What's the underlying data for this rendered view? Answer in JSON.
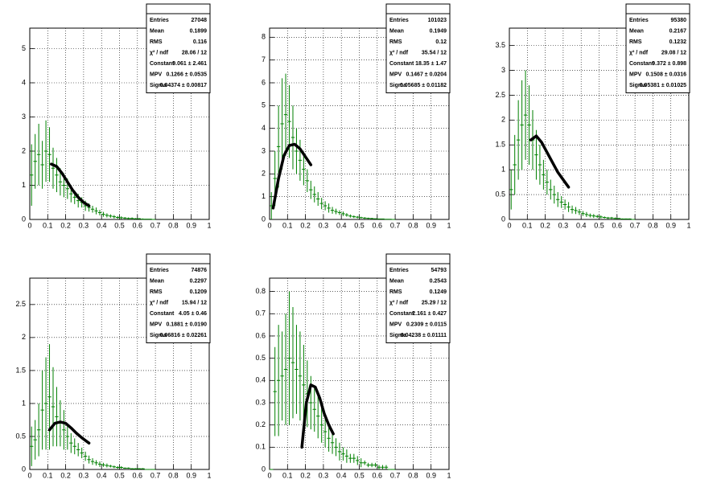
{
  "chart_data": [
    {
      "type": "histogram",
      "color": "#008000",
      "fit_color": "#000000",
      "grid": true,
      "xlim": [
        0,
        1
      ],
      "xticks": [
        0,
        0.1,
        0.2,
        0.3,
        0.4,
        0.5,
        0.6,
        0.7,
        0.8,
        0.9,
        1
      ],
      "ylim": [
        0,
        5.6
      ],
      "yticks": [
        0,
        1,
        2,
        3,
        4,
        5
      ],
      "x": [
        0.01,
        0.03,
        0.05,
        0.07,
        0.09,
        0.11,
        0.13,
        0.15,
        0.17,
        0.19,
        0.21,
        0.23,
        0.25,
        0.27,
        0.29,
        0.31,
        0.33,
        0.35,
        0.37,
        0.39,
        0.41,
        0.43,
        0.45,
        0.47,
        0.49,
        0.51,
        0.53,
        0.55,
        0.57,
        0.59,
        0.61,
        0.63,
        0.65,
        0.67,
        0.69
      ],
      "values": [
        1.3,
        1.7,
        1.9,
        1.6,
        2.0,
        1.9,
        1.5,
        1.3,
        1.1,
        1.0,
        0.9,
        0.75,
        0.65,
        0.55,
        0.5,
        0.4,
        0.35,
        0.3,
        0.25,
        0.2,
        0.15,
        0.12,
        0.1,
        0.08,
        0.06,
        0.05,
        0.04,
        0.03,
        0.03,
        0.02,
        0.02,
        0.01,
        0.01,
        0.01,
        0
      ],
      "errors": [
        0.9,
        0.8,
        0.9,
        0.7,
        0.9,
        0.8,
        0.6,
        0.5,
        0.4,
        0.35,
        0.3,
        0.25,
        0.2,
        0.2,
        0.15,
        0.15,
        0.12,
        0.1,
        0.1,
        0.08,
        0.07,
        0.06,
        0.05,
        0.05,
        0.04,
        0.04,
        0.03,
        0.03,
        0.03,
        0.02,
        0.02,
        0.02,
        0.01,
        0.01,
        0
      ],
      "fit_x": [
        0.12,
        0.15,
        0.18,
        0.21,
        0.24,
        0.27,
        0.3,
        0.33
      ],
      "fit_values": [
        1.62,
        1.55,
        1.35,
        1.1,
        0.85,
        0.65,
        0.5,
        0.4
      ],
      "stats": [
        [
          "Entries",
          "27048"
        ],
        [
          "Mean",
          "0.1899"
        ],
        [
          "RMS",
          "0.116"
        ],
        [
          "χ² / ndf",
          "28.06 / 12"
        ],
        [
          "Constant",
          "9.061 ± 2.461"
        ],
        [
          "MPV",
          "0.1266 ± 0.0535"
        ],
        [
          "Sigma",
          "0.04374 ± 0.00817"
        ]
      ]
    },
    {
      "type": "histogram",
      "color": "#008000",
      "fit_color": "#000000",
      "grid": true,
      "xlim": [
        0,
        1
      ],
      "xticks": [
        0,
        0.1,
        0.2,
        0.3,
        0.4,
        0.5,
        0.6,
        0.7,
        0.8,
        0.9,
        1
      ],
      "ylim": [
        0,
        8.4
      ],
      "yticks": [
        0,
        1,
        2,
        3,
        4,
        5,
        6,
        7,
        8
      ],
      "x": [
        0.01,
        0.03,
        0.05,
        0.07,
        0.09,
        0.11,
        0.13,
        0.15,
        0.17,
        0.19,
        0.21,
        0.23,
        0.25,
        0.27,
        0.29,
        0.31,
        0.33,
        0.35,
        0.37,
        0.39,
        0.41,
        0.43,
        0.45,
        0.47,
        0.49,
        0.51,
        0.53,
        0.55,
        0.57,
        0.59,
        0.61,
        0.63,
        0.65,
        0.67,
        0.69
      ],
      "values": [
        0.6,
        1.8,
        3.2,
        4.2,
        4.6,
        4.3,
        3.6,
        3.0,
        2.6,
        2.2,
        1.7,
        1.3,
        1.1,
        0.9,
        0.7,
        0.6,
        0.5,
        0.4,
        0.35,
        0.3,
        0.25,
        0.2,
        0.15,
        0.12,
        0.1,
        0.08,
        0.06,
        0.05,
        0.04,
        0.03,
        0.02,
        0.02,
        0.01,
        0.01,
        0
      ],
      "errors": [
        0.6,
        1.2,
        1.8,
        2.0,
        1.8,
        1.6,
        1.4,
        1.0,
        0.9,
        0.7,
        0.5,
        0.4,
        0.35,
        0.3,
        0.25,
        0.2,
        0.2,
        0.15,
        0.12,
        0.1,
        0.1,
        0.08,
        0.07,
        0.06,
        0.05,
        0.04,
        0.04,
        0.03,
        0.03,
        0.02,
        0.02,
        0.02,
        0.01,
        0.01,
        0
      ],
      "fit_x": [
        0.02,
        0.05,
        0.08,
        0.11,
        0.14,
        0.17,
        0.2,
        0.23
      ],
      "fit_values": [
        0.5,
        1.8,
        2.8,
        3.25,
        3.3,
        3.1,
        2.75,
        2.4
      ],
      "stats": [
        [
          "Entries",
          "101023"
        ],
        [
          "Mean",
          "0.1949"
        ],
        [
          "RMS",
          "0.12"
        ],
        [
          "χ² / ndf",
          "35.54 / 12"
        ],
        [
          "Constant",
          "18.35 ± 1.47"
        ],
        [
          "MPV",
          "0.1467 ± 0.0204"
        ],
        [
          "Sigma",
          "0.05685 ± 0.01182"
        ]
      ]
    },
    {
      "type": "histogram",
      "color": "#008000",
      "fit_color": "#000000",
      "grid": true,
      "xlim": [
        0,
        1
      ],
      "xticks": [
        0,
        0.1,
        0.2,
        0.3,
        0.4,
        0.5,
        0.6,
        0.7,
        0.8,
        0.9,
        1
      ],
      "ylim": [
        0,
        3.85
      ],
      "yticks": [
        0,
        0.5,
        1,
        1.5,
        2,
        2.5,
        3,
        3.5
      ],
      "x": [
        0.01,
        0.03,
        0.05,
        0.07,
        0.09,
        0.11,
        0.13,
        0.15,
        0.17,
        0.19,
        0.21,
        0.23,
        0.25,
        0.27,
        0.29,
        0.31,
        0.33,
        0.35,
        0.37,
        0.39,
        0.41,
        0.43,
        0.45,
        0.47,
        0.49,
        0.51,
        0.53,
        0.55,
        0.57,
        0.59,
        0.61,
        0.63,
        0.65,
        0.67,
        0.69
      ],
      "values": [
        0.6,
        1.1,
        1.6,
        1.9,
        2.1,
        1.9,
        1.6,
        1.3,
        1.1,
        0.9,
        0.75,
        0.6,
        0.5,
        0.4,
        0.35,
        0.3,
        0.25,
        0.2,
        0.18,
        0.15,
        0.12,
        0.1,
        0.08,
        0.07,
        0.06,
        0.05,
        0.04,
        0.03,
        0.03,
        0.02,
        0.02,
        0.01,
        0.01,
        0.01,
        0
      ],
      "errors": [
        0.4,
        0.6,
        0.8,
        0.9,
        0.9,
        0.8,
        0.6,
        0.5,
        0.4,
        0.3,
        0.25,
        0.2,
        0.18,
        0.15,
        0.12,
        0.1,
        0.1,
        0.08,
        0.07,
        0.06,
        0.05,
        0.05,
        0.04,
        0.04,
        0.03,
        0.03,
        0.02,
        0.02,
        0.02,
        0.02,
        0.01,
        0.01,
        0.01,
        0.01,
        0
      ],
      "fit_x": [
        0.12,
        0.15,
        0.18,
        0.21,
        0.24,
        0.27,
        0.3,
        0.33
      ],
      "fit_values": [
        1.6,
        1.68,
        1.55,
        1.35,
        1.15,
        0.95,
        0.8,
        0.65
      ],
      "stats": [
        [
          "Entries",
          "95380"
        ],
        [
          "Mean",
          "0.2167"
        ],
        [
          "RMS",
          "0.1232"
        ],
        [
          "χ² / ndf",
          "29.08 / 12"
        ],
        [
          "Constant",
          "9.372 ± 0.898"
        ],
        [
          "MPV",
          "0.1508 ± 0.0316"
        ],
        [
          "Sigma",
          "0.05381 ± 0.01025"
        ]
      ]
    },
    {
      "type": "histogram",
      "color": "#008000",
      "fit_color": "#000000",
      "grid": true,
      "xlim": [
        0,
        1
      ],
      "xticks": [
        0,
        0.1,
        0.2,
        0.3,
        0.4,
        0.5,
        0.6,
        0.7,
        0.8,
        0.9,
        1
      ],
      "ylim": [
        0,
        2.9
      ],
      "yticks": [
        0,
        0.5,
        1,
        1.5,
        2,
        2.5
      ],
      "x": [
        0.01,
        0.03,
        0.05,
        0.07,
        0.09,
        0.11,
        0.13,
        0.15,
        0.17,
        0.19,
        0.21,
        0.23,
        0.25,
        0.27,
        0.29,
        0.31,
        0.33,
        0.35,
        0.37,
        0.39,
        0.41,
        0.43,
        0.45,
        0.47,
        0.49,
        0.51,
        0.53,
        0.55,
        0.57,
        0.59,
        0.61,
        0.63,
        0.65,
        0.67,
        0.69
      ],
      "values": [
        0.35,
        0.45,
        0.6,
        0.9,
        1.0,
        1.1,
        0.95,
        0.8,
        0.7,
        0.6,
        0.5,
        0.4,
        0.35,
        0.3,
        0.25,
        0.2,
        0.15,
        0.12,
        0.1,
        0.08,
        0.07,
        0.06,
        0.05,
        0.04,
        0.03,
        0.03,
        0.02,
        0.02,
        0.01,
        0.01,
        0.01,
        0.01,
        0,
        0,
        0
      ],
      "errors": [
        0.3,
        0.3,
        0.4,
        0.6,
        0.7,
        0.8,
        0.6,
        0.45,
        0.35,
        0.3,
        0.2,
        0.15,
        0.12,
        0.1,
        0.08,
        0.07,
        0.06,
        0.05,
        0.04,
        0.04,
        0.03,
        0.03,
        0.02,
        0.02,
        0.02,
        0.02,
        0.01,
        0.01,
        0.01,
        0.01,
        0.01,
        0.01,
        0,
        0,
        0
      ],
      "fit_x": [
        0.11,
        0.14,
        0.17,
        0.2,
        0.23,
        0.26,
        0.29,
        0.33
      ],
      "fit_values": [
        0.6,
        0.7,
        0.72,
        0.7,
        0.63,
        0.55,
        0.48,
        0.4
      ],
      "stats": [
        [
          "Entries",
          "74876"
        ],
        [
          "Mean",
          "0.2297"
        ],
        [
          "RMS",
          "0.1209"
        ],
        [
          "χ² / ndf",
          "15.94 / 12"
        ],
        [
          "Constant",
          "4.05 ± 0.46"
        ],
        [
          "MPV",
          "0.1881 ± 0.0190"
        ],
        [
          "Sigma",
          "0.06816 ± 0.02261"
        ]
      ]
    },
    {
      "type": "histogram",
      "color": "#008000",
      "fit_color": "#000000",
      "grid": true,
      "xlim": [
        0,
        1
      ],
      "xticks": [
        0,
        0.1,
        0.2,
        0.3,
        0.4,
        0.5,
        0.6,
        0.7,
        0.8,
        0.9,
        1
      ],
      "ylim": [
        0,
        0.86
      ],
      "yticks": [
        0,
        0.1,
        0.2,
        0.3,
        0.4,
        0.5,
        0.6,
        0.7,
        0.8
      ],
      "x": [
        0.01,
        0.03,
        0.05,
        0.07,
        0.09,
        0.11,
        0.13,
        0.15,
        0.17,
        0.19,
        0.21,
        0.23,
        0.25,
        0.27,
        0.29,
        0.31,
        0.33,
        0.35,
        0.37,
        0.39,
        0.41,
        0.43,
        0.45,
        0.47,
        0.49,
        0.51,
        0.53,
        0.55,
        0.57,
        0.59,
        0.61,
        0.63,
        0.65,
        0.67,
        0.69
      ],
      "values": [
        0,
        0.35,
        0.4,
        0.42,
        0.45,
        0.5,
        0.48,
        0.45,
        0.42,
        0.38,
        0.34,
        0.3,
        0.27,
        0.24,
        0.2,
        0.17,
        0.14,
        0.12,
        0.1,
        0.08,
        0.07,
        0.06,
        0.05,
        0.05,
        0.04,
        0.03,
        0.03,
        0.02,
        0.02,
        0.02,
        0.01,
        0.01,
        0.01,
        0,
        0
      ],
      "errors": [
        0,
        0.2,
        0.25,
        0.2,
        0.25,
        0.3,
        0.25,
        0.2,
        0.2,
        0.18,
        0.15,
        0.12,
        0.1,
        0.1,
        0.08,
        0.07,
        0.06,
        0.05,
        0.04,
        0.04,
        0.03,
        0.03,
        0.02,
        0.02,
        0.02,
        0.02,
        0.01,
        0.01,
        0.01,
        0.01,
        0.01,
        0.01,
        0.01,
        0,
        0
      ],
      "fit_x": [
        0.18,
        0.205,
        0.23,
        0.255,
        0.28,
        0.305,
        0.33,
        0.355
      ],
      "fit_values": [
        0.1,
        0.3,
        0.38,
        0.37,
        0.32,
        0.25,
        0.2,
        0.16
      ],
      "stats": [
        [
          "Entries",
          "54793"
        ],
        [
          "Mean",
          "0.2543"
        ],
        [
          "RMS",
          "0.1249"
        ],
        [
          "χ² / ndf",
          "25.29 / 12"
        ],
        [
          "Constant",
          "2.161 ± 0.427"
        ],
        [
          "MPV",
          "0.2309 ± 0.0115"
        ],
        [
          "Sigma",
          "0.04238 ± 0.01111"
        ]
      ]
    }
  ]
}
